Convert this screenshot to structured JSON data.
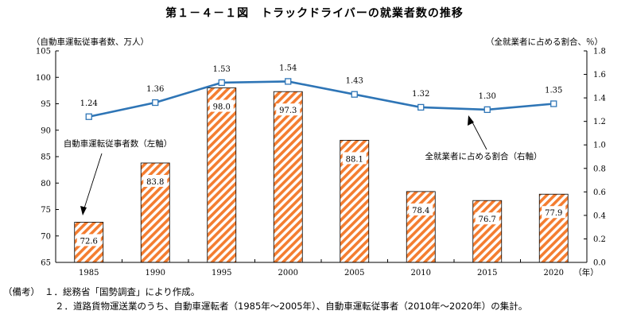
{
  "title": "第１－４－１図　トラックドライバーの就業者数の推移",
  "notes": {
    "label": "（備考）",
    "line1": "１．総務省「国勢調査」により作成。",
    "line2": "２．道路貨物運送業のうち、自動車運転者（1985年～2005年）、自動車運転従事者（2010年～2020年）の集計。"
  },
  "chart_data": {
    "type": "bar",
    "categories": [
      "1985",
      "1990",
      "1995",
      "2000",
      "2005",
      "2010",
      "2015",
      "2020"
    ],
    "x_unit": "（年）",
    "series": [
      {
        "name": "自動車運転従事者数（左軸）",
        "axis": "left",
        "type": "bar",
        "values": [
          72.6,
          83.8,
          98.0,
          97.3,
          88.1,
          78.4,
          76.7,
          77.9
        ],
        "labels": [
          "72.6",
          "83.8",
          "98.0",
          "97.3",
          "88.1",
          "78.4",
          "76.7",
          "77.9"
        ],
        "color": "#f47d30"
      },
      {
        "name": "全就業者に占める割合（右軸）",
        "axis": "right",
        "type": "line",
        "values": [
          1.24,
          1.36,
          1.53,
          1.54,
          1.43,
          1.32,
          1.3,
          1.35
        ],
        "labels": [
          "1.24",
          "1.36",
          "1.53",
          "1.54",
          "1.43",
          "1.32",
          "1.30",
          "1.35"
        ],
        "color": "#2e75b6"
      }
    ],
    "left_axis": {
      "label": "（自動車運転従事者数、万人）",
      "ylim": [
        65,
        105
      ],
      "ticks": [
        "65",
        "70",
        "75",
        "80",
        "85",
        "90",
        "95",
        "100",
        "105"
      ]
    },
    "right_axis": {
      "label": "（全就業者に占める割合、％）",
      "ylim": [
        0.0,
        1.8
      ],
      "ticks": [
        "0.0",
        "0.2",
        "0.4",
        "0.6",
        "0.8",
        "1.0",
        "1.2",
        "1.4",
        "1.6",
        "1.8"
      ]
    },
    "grid": false
  }
}
